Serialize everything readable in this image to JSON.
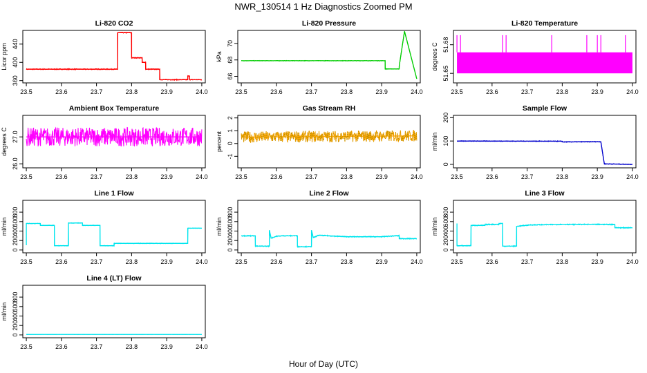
{
  "title": "NWR_130514  1 Hz Diagnostics Zoomed PM",
  "xlabel": "Hour of Day (UTC)",
  "chart_data": [
    {
      "type": "line",
      "title": "Li-820 CO2",
      "ylabel": "Licor ppm",
      "color": "#ff0000",
      "xlim": [
        23.49,
        24.01
      ],
      "ylim": [
        355,
        470
      ],
      "xticks": [
        "23.5",
        "23.6",
        "23.7",
        "23.8",
        "23.9",
        "24.0"
      ],
      "yticks": [
        "360",
        "400",
        "440"
      ],
      "ytick_values": [
        360,
        400,
        440
      ],
      "noise": 1,
      "series": [
        {
          "x": [
            23.5,
            23.76,
            23.76,
            23.8,
            23.8,
            23.83,
            23.83,
            23.84,
            23.84,
            23.88,
            23.88,
            23.96,
            23.96,
            23.965,
            23.965,
            24.0
          ],
          "y": [
            385,
            385,
            465,
            465,
            410,
            410,
            400,
            400,
            385,
            385,
            362,
            362,
            370,
            370,
            362,
            362
          ]
        }
      ]
    },
    {
      "type": "line",
      "title": "Li-820 Pressure",
      "ylabel": "kPa",
      "color": "#00cc00",
      "xlim": [
        23.49,
        24.01
      ],
      "ylim": [
        65.2,
        71.6
      ],
      "xticks": [
        "23.5",
        "23.6",
        "23.7",
        "23.8",
        "23.9",
        "24.0"
      ],
      "yticks": [
        "66",
        "68",
        "70"
      ],
      "ytick_values": [
        66,
        68,
        70
      ],
      "noise": 0.03,
      "series": [
        {
          "x": [
            23.5,
            23.91,
            23.91,
            23.95,
            23.95,
            23.965,
            24.0
          ],
          "y": [
            67.9,
            67.9,
            66.9,
            66.9,
            67.2,
            71.5,
            65.7
          ]
        }
      ]
    },
    {
      "type": "line",
      "title": "Li-820 Temperature",
      "ylabel": "degrees C",
      "color": "#ff00ff",
      "xlim": [
        23.49,
        24.01
      ],
      "ylim": [
        51.64,
        51.695
      ],
      "xticks": [
        "23.5",
        "23.6",
        "23.7",
        "23.8",
        "23.9",
        "24.0"
      ],
      "yticks": [
        "51.65",
        "51.68"
      ],
      "ytick_values": [
        51.65,
        51.68
      ],
      "band": [
        51.65,
        51.672
      ],
      "spikes_x": [
        23.5,
        23.51,
        23.63,
        23.64,
        23.77,
        23.87,
        23.9,
        23.91,
        23.98
      ],
      "spike_top": 51.69
    },
    {
      "type": "line",
      "title": "Ambient Box Temperature",
      "ylabel": "degrees C",
      "color": "#ff00ff",
      "xlim": [
        23.49,
        24.01
      ],
      "ylim": [
        25.85,
        27.8
      ],
      "xticks": [
        "23.5",
        "23.6",
        "23.7",
        "23.8",
        "23.9",
        "24.0"
      ],
      "yticks": [
        "26.0",
        "27.0"
      ],
      "ytick_values": [
        26.0,
        27.0
      ],
      "noise": 0.35,
      "series": [
        {
          "x": [
            23.5,
            24.0
          ],
          "y": [
            27.0,
            27.0
          ]
        }
      ]
    },
    {
      "type": "line",
      "title": "Gas Stream RH",
      "ylabel": "percent",
      "color": "#ffa500",
      "overlay": "#808000",
      "xlim": [
        23.49,
        24.01
      ],
      "ylim": [
        -1.9,
        2.2
      ],
      "xticks": [
        "23.5",
        "23.6",
        "23.7",
        "23.8",
        "23.9",
        "24.0"
      ],
      "yticks": [
        "-1",
        "0",
        "1",
        "2"
      ],
      "ytick_values": [
        -1,
        0,
        1,
        2
      ],
      "noise": 0.45,
      "series": [
        {
          "x": [
            23.5,
            24.0
          ],
          "y": [
            0.5,
            0.6
          ]
        }
      ]
    },
    {
      "type": "line",
      "title": "Sample Flow",
      "ylabel": "ml/min",
      "color": "#0000cc",
      "xlim": [
        23.49,
        24.01
      ],
      "ylim": [
        -15,
        210
      ],
      "xticks": [
        "23.5",
        "23.6",
        "23.7",
        "23.8",
        "23.9",
        "24.0"
      ],
      "yticks": [
        "0",
        "100",
        "200"
      ],
      "ytick_values": [
        0,
        100,
        200
      ],
      "noise": 1.5,
      "series": [
        {
          "x": [
            23.5,
            23.8,
            23.8,
            23.91,
            23.91,
            23.92,
            23.92,
            24.0
          ],
          "y": [
            100,
            99,
            96,
            97,
            97,
            2,
            2,
            0
          ]
        }
      ]
    },
    {
      "type": "line",
      "title": "Line 1 Flow",
      "ylabel": "ml/min",
      "color": "#00e5ee",
      "xlim": [
        23.49,
        24.01
      ],
      "ylim": [
        -60,
        1050
      ],
      "xticks": [
        "23.5",
        "23.6",
        "23.7",
        "23.8",
        "23.9",
        "24.0"
      ],
      "yticks": [
        "0",
        "200",
        "400",
        "600",
        "800"
      ],
      "ytick_values": [
        0,
        200,
        400,
        600,
        800
      ],
      "noise": 6,
      "series": [
        {
          "x": [
            23.5,
            23.5,
            23.54,
            23.54,
            23.58,
            23.58,
            23.62,
            23.62,
            23.66,
            23.66,
            23.71,
            23.71,
            23.75,
            23.75,
            23.96,
            23.96,
            24.0
          ],
          "y": [
            100,
            560,
            560,
            520,
            520,
            90,
            90,
            570,
            570,
            520,
            520,
            90,
            90,
            140,
            140,
            460,
            460
          ]
        }
      ]
    },
    {
      "type": "line",
      "title": "Line 2 Flow",
      "ylabel": "ml/min",
      "color": "#00e5ee",
      "xlim": [
        23.49,
        24.01
      ],
      "ylim": [
        -60,
        1050
      ],
      "xticks": [
        "23.5",
        "23.6",
        "23.7",
        "23.8",
        "23.9",
        "24.0"
      ],
      "yticks": [
        "0",
        "200",
        "400",
        "600",
        "800"
      ],
      "ytick_values": [
        0,
        200,
        400,
        600,
        800
      ],
      "noise": 10,
      "series": [
        {
          "x": [
            23.5,
            23.54,
            23.54,
            23.58,
            23.58,
            23.585,
            23.6,
            23.62,
            23.66,
            23.66,
            23.7,
            23.7,
            23.705,
            23.72,
            23.8,
            23.9,
            23.94,
            23.95,
            23.95,
            24.0
          ],
          "y": [
            300,
            300,
            80,
            80,
            420,
            250,
            290,
            300,
            300,
            70,
            70,
            420,
            260,
            310,
            280,
            280,
            300,
            300,
            240,
            240
          ]
        }
      ]
    },
    {
      "type": "line",
      "title": "Line 3 Flow",
      "ylabel": "ml/min",
      "color": "#00e5ee",
      "xlim": [
        23.49,
        24.01
      ],
      "ylim": [
        -60,
        1050
      ],
      "xticks": [
        "23.5",
        "23.6",
        "23.7",
        "23.8",
        "23.9",
        "24.0"
      ],
      "yticks": [
        "0",
        "200",
        "400",
        "600",
        "800"
      ],
      "ytick_values": [
        0,
        200,
        400,
        600,
        800
      ],
      "noise": 10,
      "series": [
        {
          "x": [
            23.5,
            23.5,
            23.54,
            23.54,
            23.58,
            23.58,
            23.62,
            23.62,
            23.63,
            23.63,
            23.67,
            23.67,
            23.71,
            23.8,
            23.9,
            23.95,
            23.95,
            24.0
          ],
          "y": [
            560,
            90,
            90,
            520,
            520,
            540,
            540,
            560,
            560,
            80,
            80,
            500,
            530,
            540,
            540,
            540,
            470,
            470
          ]
        }
      ]
    },
    {
      "type": "line",
      "title": "Line 4 (LT) Flow",
      "ylabel": "ml/min",
      "color": "#00e5ee",
      "xlim": [
        23.49,
        24.01
      ],
      "ylim": [
        -60,
        1050
      ],
      "xticks": [
        "23.5",
        "23.6",
        "23.7",
        "23.8",
        "23.9",
        "24.0"
      ],
      "yticks": [
        "0",
        "200",
        "400",
        "600",
        "800"
      ],
      "ytick_values": [
        0,
        200,
        400,
        600,
        800
      ],
      "noise": 3,
      "series": [
        {
          "x": [
            23.5,
            24.0
          ],
          "y": [
            10,
            10
          ]
        }
      ]
    }
  ]
}
